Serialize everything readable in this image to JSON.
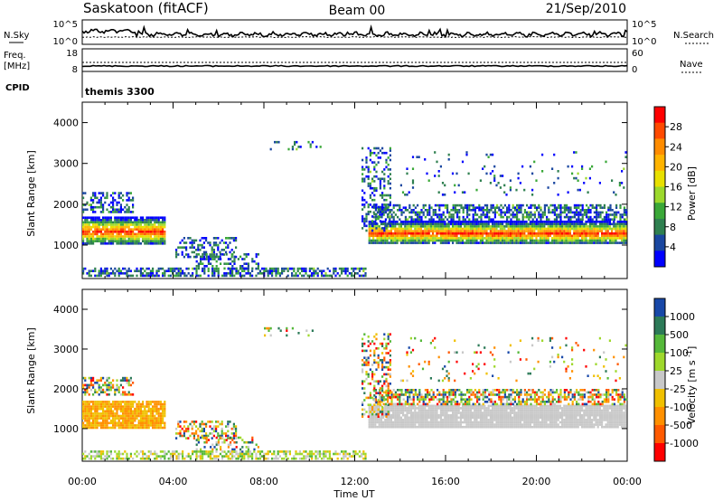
{
  "header": {
    "station": "Saskatoon (fitACF)",
    "beam": "Beam 00",
    "date": "21/Sep/2010"
  },
  "sky_panel": {
    "left_label": "N.Sky",
    "left_ticks": [
      "10^5",
      "10^0"
    ],
    "right_ticks": [
      "10^5",
      "10^0"
    ],
    "right_label": "N.Search"
  },
  "freq_panel": {
    "left_label_1": "Freq.",
    "left_label_2": "[MHz]",
    "left_ticks": [
      "18",
      "8"
    ],
    "right_ticks": [
      "60",
      "0"
    ],
    "right_label": "Nave"
  },
  "cpid_panel": {
    "label": "CPID",
    "value": "themis 3300"
  },
  "chart_data": [
    {
      "type": "heatmap",
      "ylabel": "Slant Range [km]",
      "xlabel": "Time UT",
      "x_ticks": [
        "00:00",
        "04:00",
        "08:00",
        "12:00",
        "16:00",
        "20:00",
        "00:00"
      ],
      "y_ticks": [
        "1000",
        "2000",
        "3000",
        "4000"
      ],
      "ylim": [
        180,
        4500
      ],
      "xlim_hours": [
        0,
        24
      ],
      "colorbar": {
        "label": "Power [dB]",
        "ticks": [
          "28",
          "24",
          "20",
          "16",
          "12",
          "8",
          "4"
        ],
        "colors": [
          "#ff0000",
          "#ff4a00",
          "#ff8c00",
          "#ffb400",
          "#e8e000",
          "#9cd92c",
          "#3aa838",
          "#2f8050",
          "#1a47a0",
          "#0000ff"
        ]
      }
    },
    {
      "type": "heatmap",
      "ylabel": "Slant Range [km]",
      "xlabel": "Time UT",
      "x_ticks": [
        "00:00",
        "04:00",
        "08:00",
        "12:00",
        "16:00",
        "20:00",
        "00:00"
      ],
      "y_ticks": [
        "1000",
        "2000",
        "3000",
        "4000"
      ],
      "ylim": [
        180,
        4500
      ],
      "xlim_hours": [
        0,
        24
      ],
      "colorbar": {
        "label": "Velocity [m s^-1]",
        "ticks": [
          "1000",
          "500",
          "100",
          "25",
          "-25",
          "-100",
          "-500",
          "-1000"
        ],
        "colors": [
          "#1848a8",
          "#2c7a58",
          "#55b83a",
          "#9ed82c",
          "#c8c8c8",
          "#f0c000",
          "#ff9000",
          "#ff5a00",
          "#ff0000"
        ]
      }
    }
  ]
}
